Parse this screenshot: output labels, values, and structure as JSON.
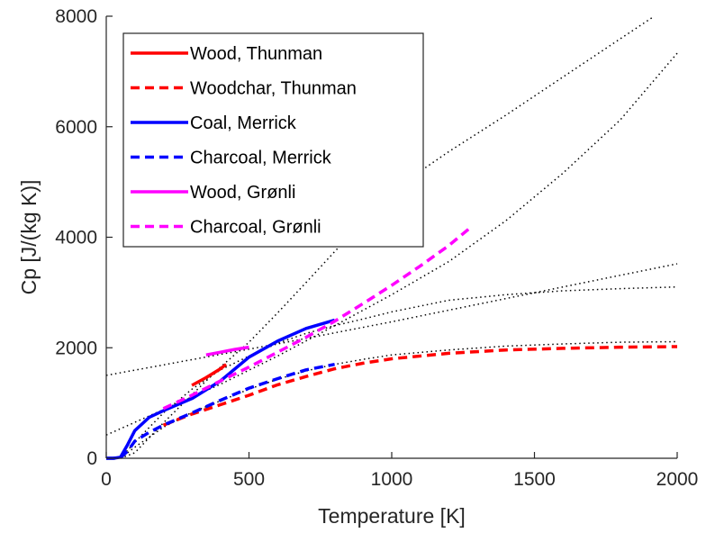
{
  "chart_data": {
    "type": "line",
    "title": "",
    "xlabel": "Temperature [K]",
    "ylabel": "Cp [J/(kg K)]",
    "xlim": [
      0,
      2000
    ],
    "ylim": [
      0,
      8000
    ],
    "xticks": [
      0,
      500,
      1000,
      1500,
      2000
    ],
    "yticks": [
      0,
      2000,
      4000,
      6000,
      8000
    ],
    "xtick_labels": [
      "0",
      "500",
      "1000",
      "1500",
      "2000"
    ],
    "ytick_labels": [
      "0",
      "2000",
      "4000",
      "6000",
      "8000"
    ],
    "grid": false,
    "legend_position": "top-left",
    "series": [
      {
        "name": "Wood, Thunman",
        "color": "#ff0000",
        "dash": "solid",
        "x": [
          300,
          350,
          400,
          420
        ],
        "y": [
          1320,
          1460,
          1620,
          1700
        ]
      },
      {
        "name": "Woodchar, Thunman",
        "color": "#ff0000",
        "dash": "dashed",
        "x": [
          200,
          300,
          400,
          500,
          600,
          700,
          800,
          900,
          1000,
          1200,
          1400,
          1600,
          1800,
          2000
        ],
        "y": [
          600,
          800,
          970,
          1140,
          1330,
          1480,
          1620,
          1720,
          1800,
          1900,
          1960,
          1990,
          2010,
          2020
        ]
      },
      {
        "name": "Coal, Merrick",
        "color": "#0000ff",
        "dash": "solid",
        "x": [
          0,
          25,
          50,
          75,
          100,
          150,
          200,
          300,
          400,
          500,
          600,
          700,
          800
        ],
        "y": [
          0,
          0,
          20,
          250,
          500,
          740,
          860,
          1080,
          1400,
          1830,
          2120,
          2350,
          2500
        ]
      },
      {
        "name": "Charcoal, Merrick",
        "color": "#0000ff",
        "dash": "dashed",
        "x": [
          0,
          25,
          50,
          75,
          100,
          150,
          200,
          300,
          400,
          500,
          600,
          700,
          800
        ],
        "y": [
          0,
          0,
          10,
          130,
          310,
          470,
          600,
          820,
          1050,
          1270,
          1440,
          1600,
          1700
        ]
      },
      {
        "name": "Wood, Grønli",
        "color": "#ff00ff",
        "dash": "solid",
        "x": [
          350,
          400,
          450,
          500
        ],
        "y": [
          1870,
          1920,
          1970,
          2010
        ]
      },
      {
        "name": "Charcoal, Grønli",
        "color": "#ff00ff",
        "dash": "dashed",
        "x": [
          200,
          300,
          400,
          500,
          600,
          700,
          800,
          900,
          1000,
          1100,
          1200,
          1270
        ],
        "y": [
          900,
          1140,
          1400,
          1650,
          1920,
          2190,
          2480,
          2800,
          3130,
          3480,
          3850,
          4150
        ]
      }
    ],
    "reference_curves": [
      {
        "color": "#000000",
        "dash": "dotted",
        "x": [
          0,
          200,
          400,
          600,
          800,
          1000,
          1200,
          1400,
          1600,
          1800,
          2000
        ],
        "y": [
          1500,
          1690,
          1880,
          2070,
          2270,
          2470,
          2680,
          2890,
          3100,
          3310,
          3520
        ]
      },
      {
        "color": "#000000",
        "dash": "dotted",
        "x": [
          0,
          200,
          400,
          600,
          800,
          1000,
          1200,
          1400,
          1600,
          1800,
          2000
        ],
        "y": [
          420,
          880,
          1340,
          1850,
          2400,
          2960,
          3560,
          4300,
          5160,
          6120,
          7330
        ]
      },
      {
        "color": "#000000",
        "dash": "dotted",
        "x": [
          50,
          100,
          200,
          300,
          400,
          500,
          600,
          700,
          800,
          900,
          1000,
          1200,
          1400,
          1600,
          1800,
          1920
        ],
        "y": [
          0,
          100,
          640,
          1150,
          1650,
          2100,
          2630,
          3180,
          3740,
          4290,
          4840,
          5550,
          6210,
          6900,
          7590,
          8000
        ]
      },
      {
        "color": "#000000",
        "dash": "dotted",
        "x": [
          50,
          100,
          200,
          300,
          400,
          500,
          600,
          700,
          800,
          900,
          1000,
          1200,
          1400,
          1600,
          1800,
          2000
        ],
        "y": [
          0,
          290,
          820,
          1250,
          1600,
          1850,
          2080,
          2260,
          2400,
          2520,
          2650,
          2860,
          2960,
          3030,
          3070,
          3100
        ]
      },
      {
        "color": "#000000",
        "dash": "dotted",
        "x": [
          50,
          100,
          200,
          300,
          400,
          500,
          600,
          700,
          800,
          900,
          1000,
          1200,
          1400,
          1600,
          1800,
          2000
        ],
        "y": [
          0,
          200,
          560,
          830,
          1040,
          1250,
          1430,
          1580,
          1700,
          1790,
          1870,
          1960,
          2030,
          2070,
          2100,
          2110
        ]
      }
    ]
  }
}
